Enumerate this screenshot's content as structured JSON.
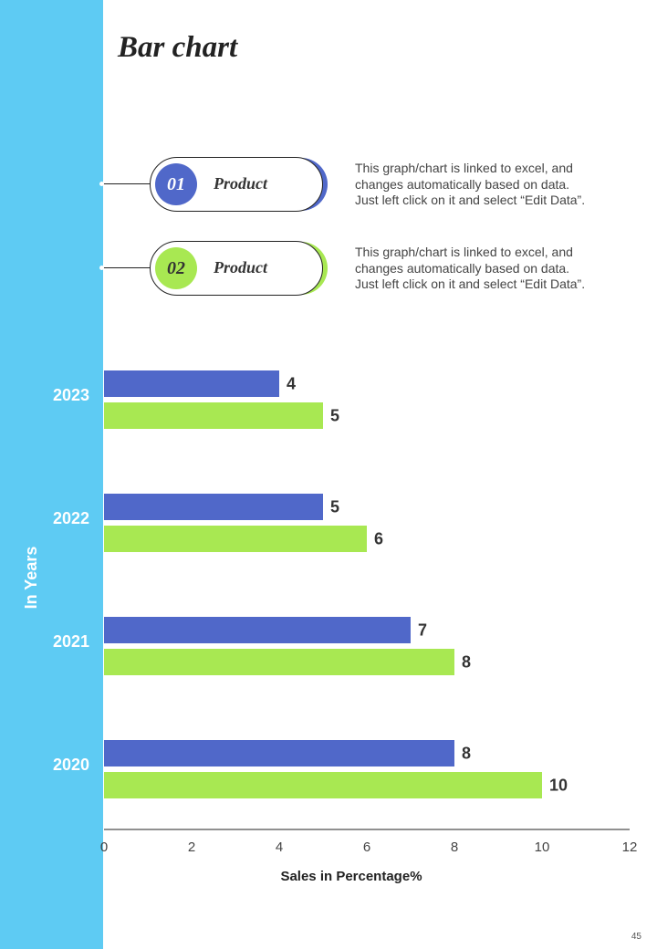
{
  "title": "Bar chart",
  "legend": [
    {
      "number": "01",
      "label": "Product",
      "color": "#5068c9",
      "desc_lines": [
        "This graph/chart is linked to excel, and",
        "changes automatically based on data.",
        "Just left click on it and select “Edit Data”."
      ]
    },
    {
      "number": "02",
      "label": "Product",
      "color": "#a8e852",
      "desc_lines": [
        "This graph/chart is linked to excel, and",
        "changes automatically based on data.",
        "Just left click on it and select “Edit Data”."
      ]
    }
  ],
  "colors": {
    "sidebar": "#5ecbf3",
    "series1": "#5068c9",
    "series2": "#a8e852",
    "axis_label_on_sidebar": "#ffffff"
  },
  "chart_data": {
    "type": "bar",
    "orientation": "horizontal",
    "categories": [
      "2023",
      "2022",
      "2021",
      "2020"
    ],
    "series": [
      {
        "name": "Product 01",
        "values": [
          4,
          5,
          7,
          8
        ]
      },
      {
        "name": "Product 02",
        "values": [
          5,
          6,
          8,
          10
        ]
      }
    ],
    "xlabel": "Sales in Percentage%",
    "ylabel": "In Years",
    "xlim": [
      0,
      12
    ],
    "xticks": [
      "0",
      "2",
      "4",
      "6",
      "8",
      "10",
      "12"
    ],
    "grid": false
  },
  "page_number": "45"
}
